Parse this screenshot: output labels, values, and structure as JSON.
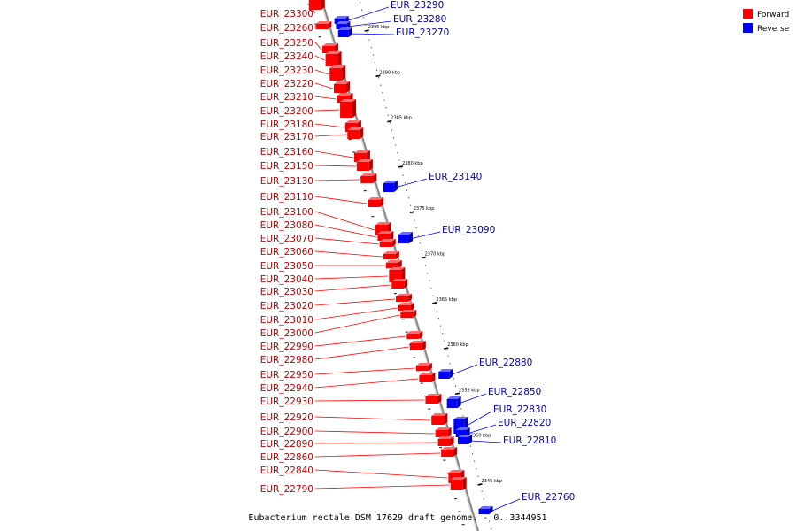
{
  "colors": {
    "forward": "#ff0000",
    "forward_dark": "#b80000",
    "forward_light": "#ff6a6a",
    "reverse": "#0000ff",
    "reverse_dark": "#0000a8",
    "reverse_light": "#6a6aff",
    "forward_label": "#c00000",
    "reverse_label": "#0000b0",
    "backbone": "#8a8a8a"
  },
  "legend": {
    "forward": "Forward",
    "reverse": "Reverse"
  },
  "caption": "Eubacterium rectale DSM 17629 draft genome. - 0..3344951",
  "ticks": [
    {
      "label": "2395 kbp"
    },
    {
      "label": "2390 kbp"
    },
    {
      "label": "2385 kbp"
    },
    {
      "label": "2380 kbp"
    },
    {
      "label": "2375 kbp"
    },
    {
      "label": "2370 kbp"
    },
    {
      "label": "2365 kbp"
    },
    {
      "label": "2360 kbp"
    },
    {
      "label": "2355 kbp"
    },
    {
      "label": "2350 kbp"
    },
    {
      "label": "2345 kbp"
    }
  ],
  "forward_genes": [
    "EUR_23300",
    "EUR_23260",
    "EUR_23250",
    "EUR_23240",
    "EUR_23230",
    "EUR_23220",
    "EUR_23210",
    "EUR_23200",
    "EUR_23180",
    "EUR_23170",
    "EUR_23160",
    "EUR_23150",
    "EUR_23130",
    "EUR_23110",
    "EUR_23100",
    "EUR_23080",
    "EUR_23070",
    "EUR_23060",
    "EUR_23050",
    "EUR_23040",
    "EUR_23030",
    "EUR_23020",
    "EUR_23010",
    "EUR_23000",
    "EUR_22990",
    "EUR_22980",
    "EUR_22950",
    "EUR_22940",
    "EUR_22930",
    "EUR_22920",
    "EUR_22900",
    "EUR_22890",
    "EUR_22860",
    "EUR_22840",
    "EUR_22790"
  ],
  "reverse_genes": [
    "EUR_23290",
    "EUR_23280",
    "EUR_23270",
    "EUR_23140",
    "EUR_23090",
    "EUR_22880",
    "EUR_22850",
    "EUR_22830",
    "EUR_22820",
    "EUR_22810",
    "EUR_22760"
  ]
}
